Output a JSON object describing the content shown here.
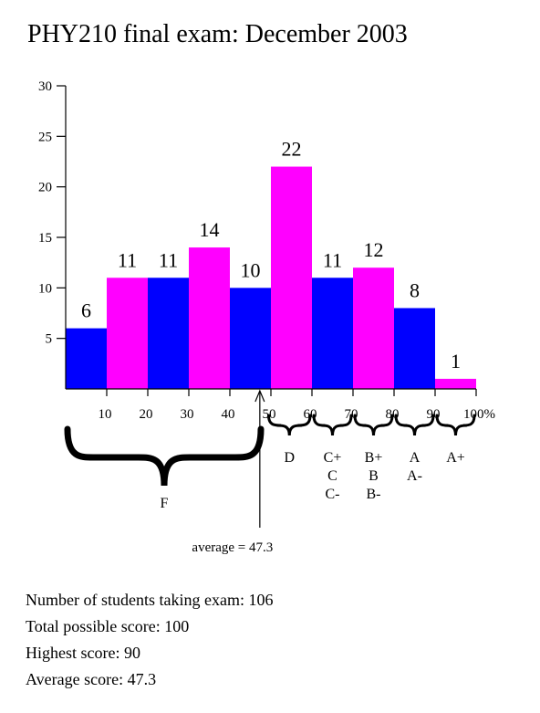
{
  "title": "PHY210 final exam: December 2003",
  "chart_data": {
    "type": "bar",
    "title": "PHY210 final exam: December 2003",
    "bin_edges": [
      0,
      10,
      20,
      30,
      40,
      50,
      60,
      70,
      80,
      90,
      100
    ],
    "values": [
      6,
      11,
      11,
      14,
      10,
      22,
      11,
      12,
      8,
      1
    ],
    "data_labels": [
      "6",
      "11",
      "11",
      "14",
      "10",
      "22",
      "11",
      "12",
      "8",
      "1"
    ],
    "bar_colors": [
      "#0000ff",
      "#ff00ff",
      "#0000ff",
      "#ff00ff",
      "#0000ff",
      "#ff00ff",
      "#0000ff",
      "#ff00ff",
      "#0000ff",
      "#ff00ff"
    ],
    "x_ticks": [
      10,
      20,
      30,
      40,
      50,
      60,
      70,
      80,
      90,
      100
    ],
    "x_tick_labels": [
      "10",
      "20",
      "30",
      "40",
      "50",
      "60",
      "70",
      "80",
      "90",
      "100%"
    ],
    "y_ticks": [
      5,
      10,
      15,
      20,
      25,
      30
    ],
    "y_tick_labels": [
      "5",
      "10",
      "15",
      "20",
      "25",
      "30"
    ],
    "xlim": [
      0,
      100
    ],
    "ylim": [
      0,
      30
    ],
    "xlabel": "",
    "ylabel": "",
    "grid": false,
    "legend": "none",
    "grade_groups": [
      {
        "range": [
          0,
          48
        ],
        "lines": [
          "F"
        ]
      },
      {
        "range": [
          49,
          60
        ],
        "lines": [
          "D"
        ]
      },
      {
        "range": [
          60,
          70
        ],
        "lines": [
          "C+",
          "C",
          "C-"
        ]
      },
      {
        "range": [
          70,
          80
        ],
        "lines": [
          "B+",
          "B",
          "B-"
        ]
      },
      {
        "range": [
          80,
          90
        ],
        "lines": [
          "A",
          "A-"
        ]
      },
      {
        "range": [
          90,
          100
        ],
        "lines": [
          "A+"
        ]
      }
    ],
    "average": 47.3,
    "average_label": "average = 47.3"
  },
  "stats": {
    "students": "Number of students taking exam: 106",
    "total": "Total possible score: 100",
    "highest": "Highest score: 90",
    "average": "Average score: 47.3"
  }
}
